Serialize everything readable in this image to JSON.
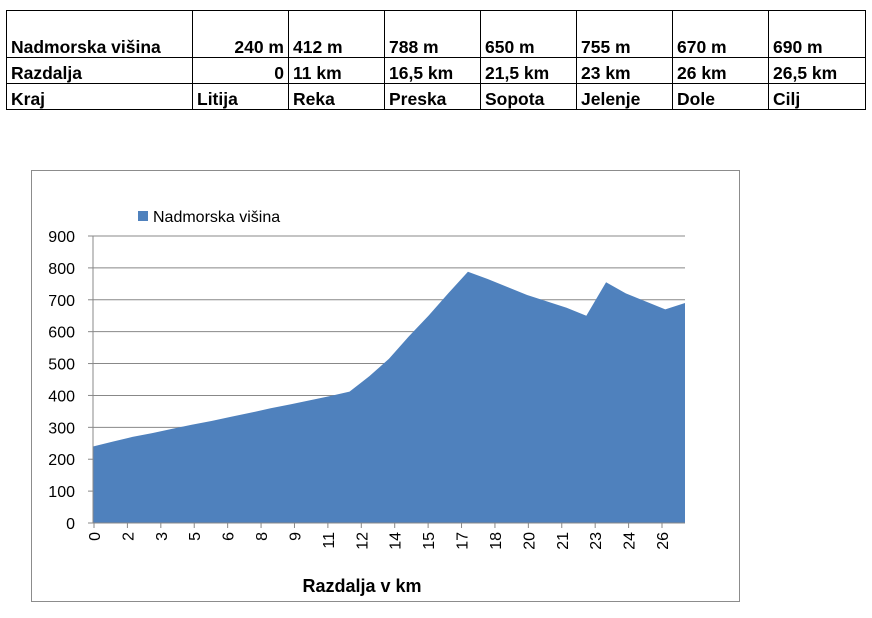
{
  "table": {
    "rows": [
      {
        "label": "Nadmorska višina",
        "cells": [
          "240 m",
          "412 m",
          "788 m",
          "650 m",
          "755 m",
          "670 m",
          "690 m"
        ]
      },
      {
        "label": "Razdalja",
        "cells": [
          "0",
          "11 km",
          "16,5 km",
          "21,5 km",
          "23 km",
          "26 km",
          "26,5 km"
        ]
      },
      {
        "label": "Kraj",
        "cells": [
          "Litija",
          "Reka",
          "Preska",
          "Sopota",
          "Jelenje",
          "Dole",
          "Cilj"
        ]
      }
    ]
  },
  "chart_data": {
    "type": "area",
    "xlabel": "Razdalja v km",
    "ylabel": "",
    "ylim": [
      0,
      900
    ],
    "yticks": [
      "0",
      "100",
      "200",
      "300",
      "400",
      "500",
      "600",
      "700",
      "800",
      "900"
    ],
    "xticks": [
      "0",
      "2",
      "3",
      "5",
      "6",
      "8",
      "9",
      "11",
      "12",
      "14",
      "15",
      "17",
      "18",
      "20",
      "21",
      "23",
      "24",
      "26"
    ],
    "grid": true,
    "legend_position": "top-left",
    "color": "#4f81bd",
    "series": [
      {
        "name": "Nadmorska višina",
        "values": [
          240,
          255,
          270,
          282,
          295,
          308,
          320,
          333,
          346,
          360,
          372,
          385,
          398,
          412,
          460,
          515,
          585,
          650,
          720,
          788,
          765,
          740,
          715,
          695,
          675,
          650,
          755,
          720,
          695,
          670,
          690
        ]
      }
    ]
  }
}
